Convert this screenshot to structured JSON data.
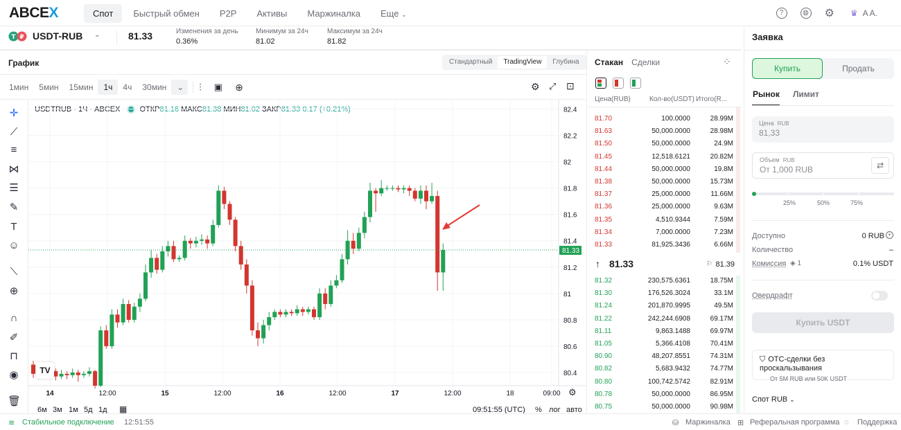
{
  "nav": {
    "logo_a": "ABCE",
    "logo_b": "X",
    "items": [
      "Спот",
      "Быстрый обмен",
      "P2P",
      "Активы",
      "Маржиналка",
      "Еще"
    ],
    "user": "A A."
  },
  "ticker": {
    "symbol": "USDT-RUB",
    "price": "81.33",
    "stats": [
      {
        "label": "Изменения за день",
        "value": "0.36%"
      },
      {
        "label": "Минимум за 24ч",
        "value": "81.02"
      },
      {
        "label": "Максимум за 24ч",
        "value": "81.82"
      }
    ]
  },
  "chart_panel": {
    "title": "График",
    "views": [
      "Стандартный",
      "TradingView",
      "Глубина"
    ],
    "timeframes": [
      "1мин",
      "5мин",
      "15мин",
      "1ч",
      "4ч",
      "30мин"
    ],
    "legend_symbol": "USDTRUB · 1Ч · ABCEX",
    "legend_o_label": "ОТКР",
    "legend_o": "81.16",
    "legend_h_label": "МАКС",
    "legend_h": "81.38",
    "legend_l_label": "МИН",
    "legend_l": "81.02",
    "legend_c_label": "ЗАКР",
    "legend_c": "81.33",
    "legend_change": "0.17 (+0.21%)",
    "ranges": [
      "6м",
      "3м",
      "1м",
      "5д",
      "1д"
    ],
    "clock": "09:51:55 (UTC)",
    "pct": "%",
    "log": "лог",
    "auto": "авто",
    "price_label": "81.33"
  },
  "chart_data": {
    "type": "candlestick",
    "ylim": [
      80.3,
      82.45
    ],
    "y_ticks": [
      "82.4",
      "82.2",
      "82",
      "81.8",
      "81.6",
      "81.4",
      "81.2",
      "81",
      "80.8",
      "80.6",
      "80.4"
    ],
    "x_ticks": [
      "14",
      "12:00",
      "15",
      "12:00",
      "16",
      "12:00",
      "17",
      "12:00",
      "18",
      "09:00"
    ],
    "last_price": 81.33,
    "candles": [
      [
        80.46,
        80.39,
        80.49,
        80.36
      ],
      [
        80.39,
        80.42,
        80.45,
        80.35
      ],
      [
        80.42,
        80.4,
        80.46,
        80.37
      ],
      [
        80.4,
        80.41,
        80.44,
        80.38
      ],
      [
        80.41,
        80.37,
        80.43,
        80.34
      ],
      [
        80.37,
        80.39,
        80.42,
        80.35
      ],
      [
        80.39,
        80.38,
        80.41,
        80.35
      ],
      [
        80.38,
        80.4,
        80.43,
        80.36
      ],
      [
        80.4,
        80.38,
        80.42,
        80.33
      ],
      [
        80.38,
        80.39,
        80.41,
        80.36
      ],
      [
        80.39,
        80.41,
        80.44,
        80.37
      ],
      [
        80.41,
        80.3,
        80.42,
        80.28
      ],
      [
        80.3,
        80.72,
        80.75,
        80.29
      ],
      [
        80.72,
        80.6,
        80.76,
        80.58
      ],
      [
        80.6,
        80.84,
        80.88,
        80.58
      ],
      [
        80.84,
        80.78,
        80.88,
        80.74
      ],
      [
        80.78,
        80.92,
        80.96,
        80.76
      ],
      [
        80.92,
        80.8,
        80.95,
        80.78
      ],
      [
        80.8,
        80.9,
        80.93,
        80.78
      ],
      [
        80.9,
        80.96,
        81.0,
        80.86
      ],
      [
        80.96,
        81.16,
        81.22,
        80.94
      ],
      [
        81.16,
        81.27,
        81.33,
        81.12
      ],
      [
        81.27,
        81.18,
        81.3,
        81.15
      ],
      [
        81.18,
        81.32,
        81.36,
        81.16
      ],
      [
        81.32,
        81.36,
        81.4,
        81.28
      ],
      [
        81.36,
        81.26,
        81.4,
        81.24
      ],
      [
        81.26,
        81.27,
        81.29,
        81.24
      ],
      [
        81.27,
        81.4,
        81.44,
        81.25
      ],
      [
        81.4,
        81.38,
        81.42,
        81.34
      ],
      [
        81.38,
        81.4,
        81.43,
        81.35
      ],
      [
        81.4,
        81.41,
        81.45,
        81.37
      ],
      [
        81.41,
        81.38,
        81.44,
        81.34
      ],
      [
        81.38,
        81.52,
        81.56,
        81.36
      ],
      [
        81.52,
        81.78,
        81.82,
        81.5
      ],
      [
        81.78,
        81.68,
        81.81,
        81.64
      ],
      [
        81.68,
        81.56,
        81.7,
        81.52
      ],
      [
        81.56,
        81.36,
        81.58,
        81.32
      ],
      [
        81.36,
        81.22,
        81.4,
        81.18
      ],
      [
        81.22,
        81.06,
        81.26,
        81.0
      ],
      [
        81.06,
        80.72,
        81.1,
        80.68
      ],
      [
        80.72,
        80.66,
        80.78,
        80.6
      ],
      [
        80.66,
        80.76,
        80.8,
        80.62
      ],
      [
        80.76,
        80.82,
        80.86,
        80.72
      ],
      [
        80.82,
        80.86,
        80.88,
        80.8
      ],
      [
        80.86,
        80.84,
        80.88,
        80.82
      ],
      [
        80.84,
        80.86,
        80.88,
        80.82
      ],
      [
        80.86,
        80.85,
        80.88,
        80.83
      ],
      [
        80.85,
        80.88,
        80.91,
        80.83
      ],
      [
        80.88,
        80.86,
        80.9,
        80.83
      ],
      [
        80.86,
        80.88,
        80.9,
        80.84
      ],
      [
        80.88,
        80.82,
        80.9,
        80.8
      ],
      [
        80.82,
        81.0,
        81.04,
        80.8
      ],
      [
        81.0,
        80.92,
        81.04,
        80.88
      ],
      [
        80.92,
        81.06,
        81.1,
        80.9
      ],
      [
        81.06,
        81.1,
        81.14,
        81.04
      ],
      [
        81.1,
        81.26,
        81.3,
        81.08
      ],
      [
        81.26,
        81.4,
        81.48,
        81.22
      ],
      [
        81.4,
        81.34,
        81.46,
        81.3
      ],
      [
        81.34,
        81.46,
        81.5,
        81.32
      ],
      [
        81.46,
        81.58,
        81.62,
        81.42
      ],
      [
        81.58,
        81.78,
        81.84,
        81.54
      ],
      [
        81.78,
        81.76,
        81.8,
        81.62
      ],
      [
        81.76,
        81.8,
        81.86,
        81.74
      ],
      [
        81.8,
        81.8,
        81.82,
        81.78
      ],
      [
        81.8,
        81.8,
        81.82,
        81.78
      ],
      [
        81.8,
        81.79,
        81.82,
        81.77
      ],
      [
        81.79,
        81.8,
        81.82,
        81.76
      ],
      [
        81.8,
        81.78,
        81.82,
        81.74
      ],
      [
        81.78,
        81.72,
        81.8,
        81.7
      ],
      [
        81.72,
        81.78,
        81.82,
        81.68
      ],
      [
        81.78,
        81.7,
        81.82,
        81.64
      ],
      [
        81.7,
        81.74,
        81.84,
        81.68
      ],
      [
        81.74,
        81.16,
        81.78,
        81.02
      ],
      [
        81.16,
        81.33,
        81.38,
        81.02
      ]
    ]
  },
  "orderbook": {
    "tabs": [
      "Стакан",
      "Сделки"
    ],
    "headers": [
      "Цена(RUB)",
      "Кол-во(USDT)",
      "Итого(R..."
    ],
    "asks": [
      [
        "81.70",
        "100.0000",
        "28.99M"
      ],
      [
        "81.63",
        "50,000.0000",
        "28.98M"
      ],
      [
        "81.50",
        "50,000.0000",
        "24.9M"
      ],
      [
        "81.45",
        "12,518.6121",
        "20.82M"
      ],
      [
        "81.44",
        "50,000.0000",
        "19.8M"
      ],
      [
        "81.38",
        "50,000.0000",
        "15.73M"
      ],
      [
        "81.37",
        "25,000.0000",
        "11.66M"
      ],
      [
        "81.36",
        "25,000.0000",
        "9.63M"
      ],
      [
        "81.35",
        "4,510.9344",
        "7.59M"
      ],
      [
        "81.34",
        "7,000.0000",
        "7.23M"
      ],
      [
        "81.33",
        "81,925.3436",
        "6.66M"
      ]
    ],
    "mid_price": "81.33",
    "mid_index": "81.39",
    "bids": [
      [
        "81.32",
        "230,575.6361",
        "18.75M"
      ],
      [
        "81.30",
        "176,526.3024",
        "33.1M"
      ],
      [
        "81.24",
        "201,870.9995",
        "49.5M"
      ],
      [
        "81.22",
        "242,244.6908",
        "69.17M"
      ],
      [
        "81.11",
        "9,863.1488",
        "69.97M"
      ],
      [
        "81.05",
        "5,366.4108",
        "70.41M"
      ],
      [
        "80.90",
        "48,207.8551",
        "74.31M"
      ],
      [
        "80.82",
        "5,683.9432",
        "74.77M"
      ],
      [
        "80.80",
        "100,742.5742",
        "82.91M"
      ],
      [
        "80.78",
        "50,000.0000",
        "86.95M"
      ],
      [
        "80.75",
        "50,000.0000",
        "90.98M"
      ]
    ]
  },
  "order": {
    "title": "Заявка",
    "buy": "Купить",
    "sell": "Продать",
    "type_market": "Рынок",
    "type_limit": "Лимит",
    "price_label": "Цена",
    "price_unit": "RUB",
    "price_value": "81,33",
    "volume_label": "Объем",
    "volume_unit": "RUB",
    "volume_placeholder": "От 1,000 RUB",
    "slider_marks": [
      "25%",
      "50%",
      "75%"
    ],
    "slider_value": 0,
    "available_label": "Доступно",
    "available_value": "0 RUB",
    "qty_label": "Количество",
    "qty_value": "–",
    "fee_label": "Комиссия",
    "fee_tier": "1",
    "fee_value": "0.1% USDT",
    "overdraft_label": "Овердрафт",
    "submit": "Купить USDT",
    "otc_title": "ОТС-сделки без проскальзывания",
    "otc_sub": "От 5M RUB или 50K USDT",
    "spot_select": "Спот RUB"
  },
  "status": {
    "connection": "Стабильное подключение",
    "time": "12:51:55",
    "margin": "Маржиналка",
    "referral": "Реферальная программа",
    "support": "Поддержка"
  },
  "colors": {
    "up": "#21a155",
    "down": "#d2362f",
    "accent": "#1d9bd8"
  }
}
